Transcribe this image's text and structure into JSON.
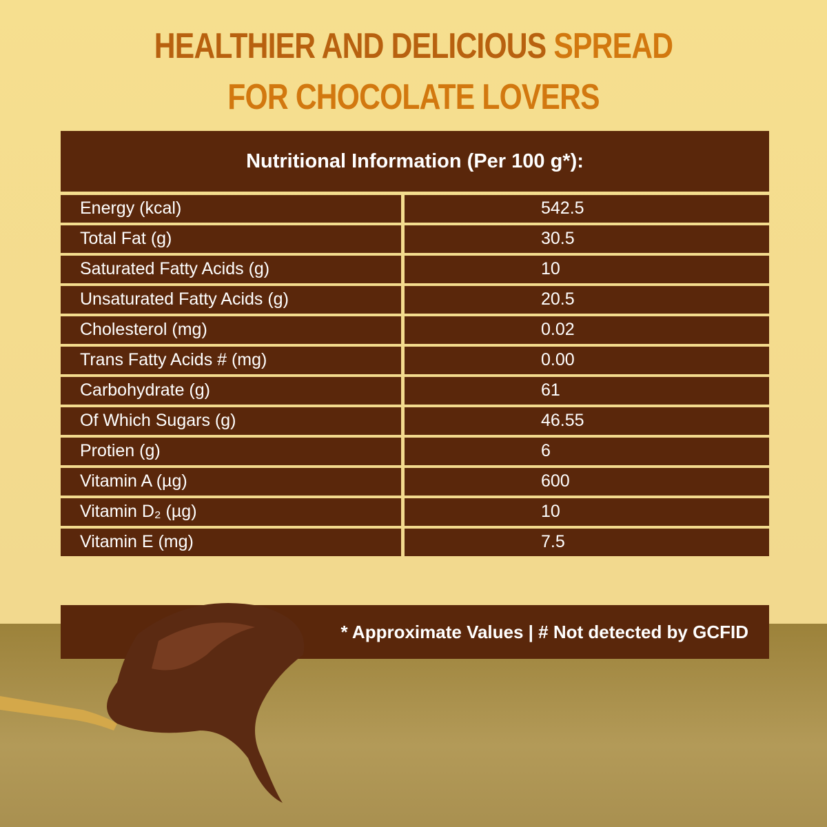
{
  "header": {
    "title_start": "HEALTHIER AND DELICIOUS",
    "title_end": "SPREAD FOR CHOCOLATE LOVERS"
  },
  "table": {
    "heading": "Nutritional Information (Per 100 g*):",
    "rows": [
      [
        "Energy (kcal)",
        "542.5"
      ],
      [
        "Total Fat (g)",
        "30.5"
      ],
      [
        "Saturated Fatty Acids (g)",
        "10"
      ],
      [
        "Unsaturated Fatty Acids (g)",
        "20.5"
      ],
      [
        "Cholesterol (mg)",
        "0.02"
      ],
      [
        "Trans Fatty Acids # (mg)",
        "0.00"
      ],
      [
        "Carbohydrate (g)",
        "61"
      ],
      [
        "Of Which Sugars (g)",
        "46.55"
      ],
      [
        "Protien (g)",
        "6"
      ],
      [
        "Vitamin A (µg)",
        "600"
      ],
      [
        "Vitamin D₂ (µg)",
        "10"
      ],
      [
        "Vitamin E (mg)",
        "7.5"
      ]
    ]
  },
  "footnote": "* Approximate Values | # Not detected by GCFID"
}
